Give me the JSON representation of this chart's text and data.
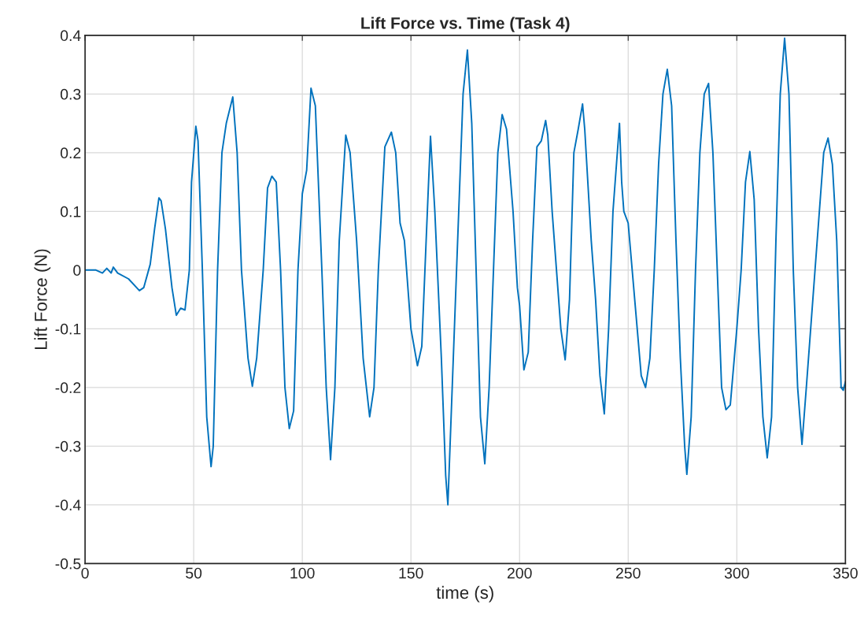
{
  "chart_data": {
    "type": "line",
    "title": "Lift Force vs. Time (Task 4)",
    "xlabel": "time (s)",
    "ylabel": "Lift Force (N)",
    "xlim": [
      0,
      350
    ],
    "xticks": [
      0,
      50,
      100,
      150,
      200,
      250,
      300,
      350
    ],
    "ylim": [
      -0.5,
      0.4
    ],
    "yticks": [
      -0.5,
      -0.4,
      -0.3,
      -0.2,
      -0.1,
      0,
      0.1,
      0.2,
      0.3,
      0.4
    ],
    "grid": true,
    "marker": "none",
    "line_style": "solid",
    "series": [
      {
        "color": "#0072bd",
        "x": [
          0,
          5,
          8,
          10,
          12,
          13,
          15,
          20,
          25,
          27,
          30,
          32,
          34,
          35,
          37,
          40,
          42,
          44,
          46,
          48,
          49,
          51,
          52,
          54,
          56,
          58,
          59,
          61,
          63,
          65,
          68,
          70,
          72,
          75,
          77,
          79,
          82,
          84,
          86,
          88,
          90,
          92,
          94,
          96,
          98,
          100,
          102,
          104,
          106,
          109,
          111,
          113,
          115,
          117,
          120,
          122,
          125,
          128,
          131,
          133,
          135,
          138,
          141,
          143,
          145,
          147,
          150,
          153,
          155,
          157,
          159,
          161,
          164,
          166,
          167,
          169,
          172,
          174,
          176,
          178,
          180,
          182,
          184,
          186,
          188,
          190,
          192,
          194,
          197,
          199,
          200,
          202,
          204,
          206,
          208,
          210,
          212,
          213,
          215,
          217,
          219,
          221,
          223,
          225,
          227,
          229,
          230,
          233,
          235,
          237,
          239,
          241,
          243,
          246,
          247,
          248,
          250,
          253,
          256,
          258,
          260,
          262,
          264,
          266,
          268,
          270,
          272,
          274,
          276,
          277,
          279,
          281,
          283,
          285,
          287,
          289,
          291,
          293,
          295,
          297,
          300,
          302,
          304,
          306,
          308,
          310,
          312,
          314,
          316,
          318,
          320,
          322,
          324,
          326,
          328,
          330,
          332,
          334,
          336,
          338,
          340,
          342,
          344,
          346,
          348,
          349,
          350
        ],
        "values": [
          0,
          0,
          -0.005,
          0.003,
          -0.005,
          0.005,
          -0.005,
          -0.015,
          -0.035,
          -0.03,
          0.01,
          0.07,
          0.123,
          0.118,
          0.07,
          -0.03,
          -0.077,
          -0.065,
          -0.068,
          0.0,
          0.15,
          0.245,
          0.22,
          0.0,
          -0.25,
          -0.335,
          -0.3,
          0.0,
          0.2,
          0.25,
          0.295,
          0.2,
          0.0,
          -0.15,
          -0.198,
          -0.15,
          0.0,
          0.14,
          0.16,
          0.15,
          0.0,
          -0.2,
          -0.27,
          -0.24,
          0.0,
          0.13,
          0.17,
          0.31,
          0.28,
          0.0,
          -0.2,
          -0.323,
          -0.2,
          0.05,
          0.23,
          0.2,
          0.05,
          -0.15,
          -0.25,
          -0.2,
          0.0,
          0.21,
          0.235,
          0.2,
          0.08,
          0.05,
          -0.1,
          -0.163,
          -0.13,
          0.05,
          0.228,
          0.1,
          -0.15,
          -0.35,
          -0.4,
          -0.2,
          0.1,
          0.3,
          0.375,
          0.25,
          0.0,
          -0.25,
          -0.33,
          -0.2,
          0.0,
          0.2,
          0.265,
          0.24,
          0.1,
          -0.03,
          -0.06,
          -0.17,
          -0.14,
          0.05,
          0.21,
          0.22,
          0.255,
          0.23,
          0.1,
          0.0,
          -0.1,
          -0.153,
          -0.05,
          0.2,
          0.24,
          0.283,
          0.24,
          0.05,
          -0.05,
          -0.18,
          -0.245,
          -0.1,
          0.1,
          0.25,
          0.15,
          0.1,
          0.08,
          -0.05,
          -0.18,
          -0.2,
          -0.15,
          0.0,
          0.18,
          0.3,
          0.342,
          0.28,
          0.05,
          -0.15,
          -0.3,
          -0.348,
          -0.25,
          0.0,
          0.2,
          0.3,
          0.318,
          0.2,
          0.0,
          -0.2,
          -0.238,
          -0.23,
          -0.1,
          0.0,
          0.15,
          0.202,
          0.12,
          -0.1,
          -0.25,
          -0.32,
          -0.25,
          0.05,
          0.3,
          0.395,
          0.3,
          0.0,
          -0.2,
          -0.297,
          -0.2,
          -0.1,
          0.0,
          0.1,
          0.2,
          0.225,
          0.18,
          0.05,
          -0.2,
          -0.205,
          -0.19
        ]
      }
    ]
  }
}
